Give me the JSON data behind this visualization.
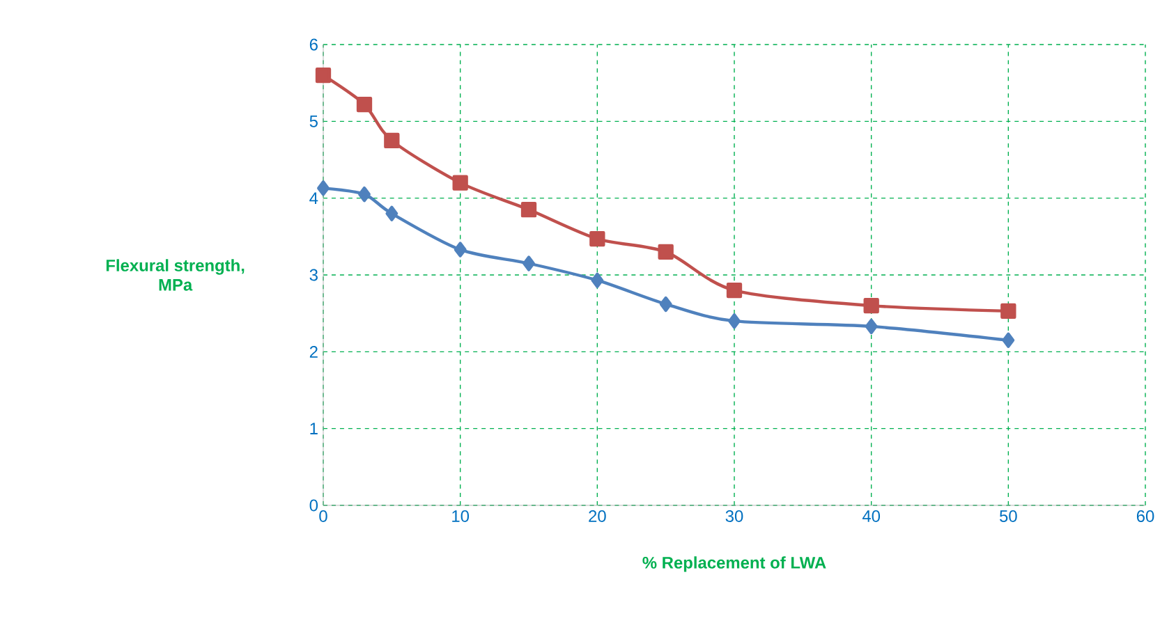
{
  "chart_data": {
    "type": "line",
    "xlabel": "% Replacement of LWA",
    "ylabel": "Flexural strength, MPa",
    "x": [
      0,
      3,
      5,
      10,
      15,
      20,
      25,
      30,
      40,
      50
    ],
    "series": [
      {
        "color": "#c0504d",
        "marker": "square",
        "values": [
          5.6,
          5.22,
          4.75,
          4.2,
          3.85,
          3.47,
          3.3,
          2.8,
          2.6,
          2.53
        ]
      },
      {
        "color": "#4f81bd",
        "marker": "diamond",
        "values": [
          4.13,
          4.05,
          3.8,
          3.33,
          3.15,
          2.93,
          2.62,
          2.4,
          2.33,
          2.15
        ]
      }
    ],
    "xlim": [
      0,
      60
    ],
    "ylim": [
      0,
      6
    ],
    "xticks": [
      0,
      10,
      20,
      30,
      40,
      50,
      60
    ],
    "yticks": [
      0,
      1,
      2,
      3,
      4,
      5,
      6
    ],
    "grid": true
  }
}
